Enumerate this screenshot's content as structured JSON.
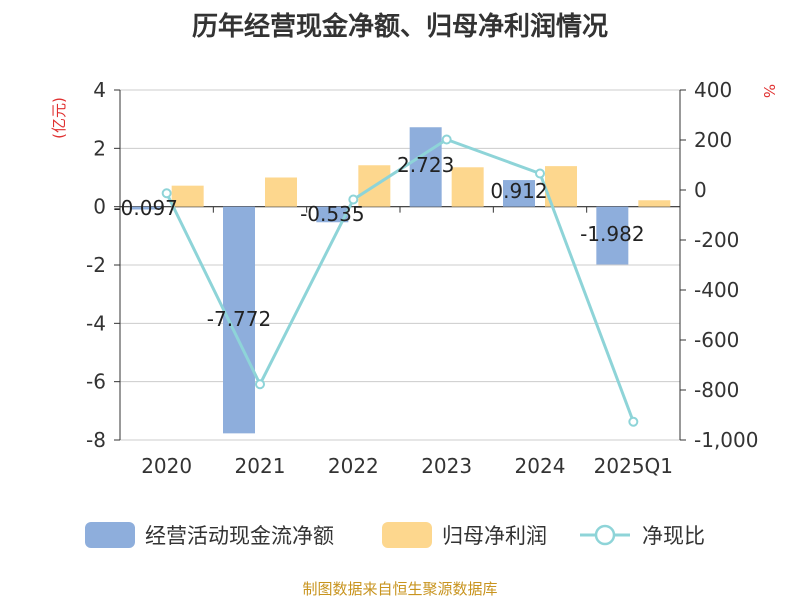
{
  "header": {
    "title": "历年经营现金净额、归母净利润情况"
  },
  "footer": {
    "source": "制图数据来自恒生聚源数据库"
  },
  "colors": {
    "cash_flow": "#8eaedc",
    "net_profit": "#fdd78e",
    "ratio": "#8ed4d8",
    "left_axis_label": "#e03030",
    "right_axis_label": "#e03030"
  },
  "chart_data": {
    "type": "bar",
    "categories": [
      "2020",
      "2021",
      "2022",
      "2023",
      "2024",
      "2025Q1"
    ],
    "series": [
      {
        "name": "经营活动现金流净额",
        "type": "bar",
        "axis": "left",
        "values": [
          -0.097,
          -7.772,
          -0.535,
          2.723,
          0.912,
          -1.982
        ],
        "labels": [
          "-0.097",
          "-7.772",
          "-0.535",
          "2.723",
          "0.912",
          "-1.982"
        ]
      },
      {
        "name": "归母净利润",
        "type": "bar",
        "axis": "left",
        "values": [
          0.72,
          1.0,
          1.42,
          1.35,
          1.39,
          0.22
        ]
      },
      {
        "name": "净现比",
        "type": "line",
        "axis": "right",
        "values": [
          -13,
          -777,
          -38,
          202,
          66,
          -927
        ]
      }
    ],
    "left_axis": {
      "label": "(亿元)",
      "range": [
        -8,
        4
      ],
      "ticks": [
        "4",
        "2",
        "0",
        "-2",
        "-4",
        "-6",
        "-8"
      ]
    },
    "right_axis": {
      "label": "%",
      "range": [
        -1000,
        400
      ],
      "ticks": [
        "400",
        "200",
        "0",
        "-200",
        "-400",
        "-600",
        "-800",
        "-1,000"
      ]
    },
    "grid": true,
    "legend_position": "bottom"
  }
}
